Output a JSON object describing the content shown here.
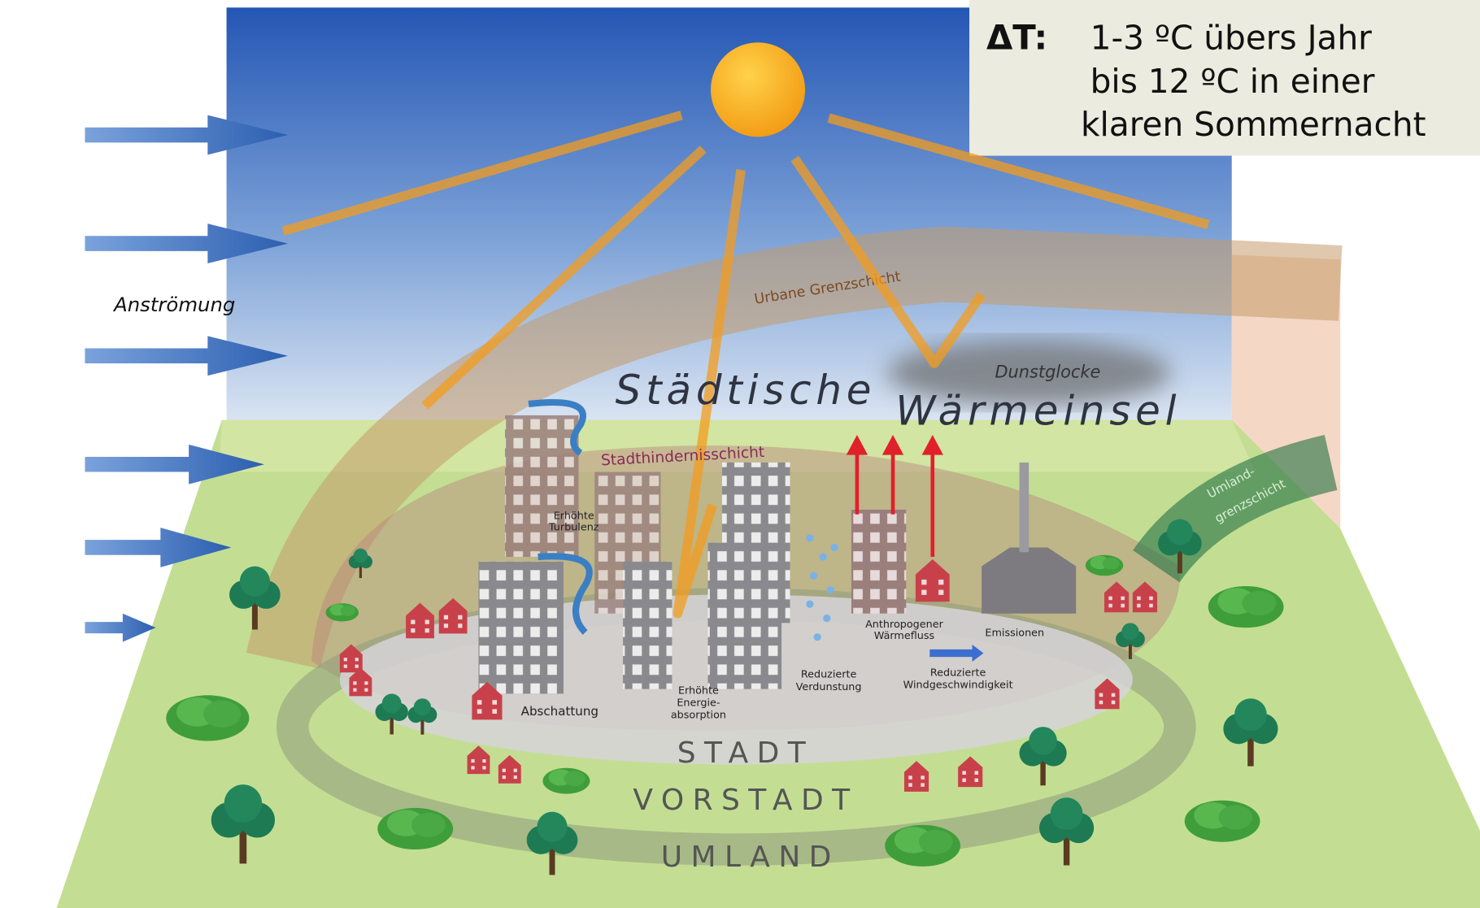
{
  "info_box": {
    "label": "ΔT:",
    "lines": [
      "1-3 ºC übers Jahr",
      "bis 12 ºC in einer",
      "klaren Sommernacht"
    ]
  },
  "labels": {
    "inflow": "Anströmung",
    "urban_boundary_layer": "Urbane Grenzschicht",
    "heat_island": [
      "Städtische",
      "Wärmeinsel"
    ],
    "haze": "Dunstglocke",
    "canopy_layer": "Stadthindernisschicht",
    "turbulence": [
      "Erhöhte",
      "Turbulenz"
    ],
    "shading": "Abschattung",
    "absorption": [
      "Erhöhte",
      "Energie-",
      "absorption"
    ],
    "evaporation": [
      "Reduzierte",
      "Verdunstung"
    ],
    "anthropogenic": [
      "Anthropogener",
      "Wärmefluss"
    ],
    "wind": [
      "Reduzierte",
      "Windgeschwindigkeit"
    ],
    "emissions": "Emissionen",
    "rural_boundary_layer": [
      "Umland-",
      "grenzschicht"
    ]
  },
  "zones": [
    "STADT",
    "VORSTADT",
    "UMLAND"
  ]
}
